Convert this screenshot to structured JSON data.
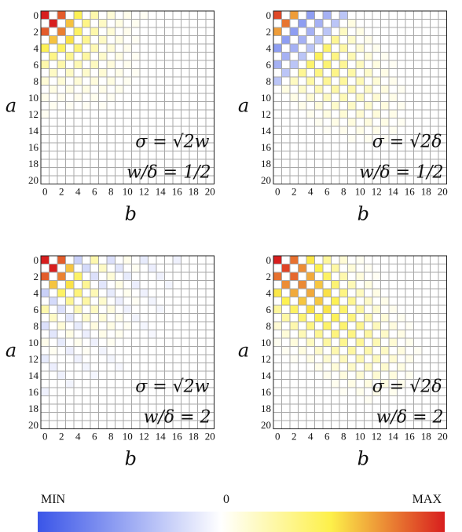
{
  "colors": {
    "min": "#3a55e8",
    "zero": "#ffffff",
    "mid": "#fdf04a",
    "max": "#d81e1e",
    "grid": "#a8a8a8"
  },
  "legend": {
    "min_label": "MIN",
    "zero_label": "0",
    "max_label": "MAX"
  },
  "chart_data": [
    {
      "type": "heatmap",
      "xlabel": "b",
      "ylabel": "a",
      "xticks": [
        "0",
        "2",
        "4",
        "6",
        "8",
        "10",
        "12",
        "14",
        "16",
        "18",
        "20"
      ],
      "yticks": [
        "0",
        "2",
        "4",
        "6",
        "8",
        "10",
        "12",
        "14",
        "16",
        "18",
        "20"
      ],
      "grid": true,
      "annotation_line1": "σ = √2w",
      "annotation_line2": "w/δ = 1/2",
      "checker_parity": "even",
      "value_pattern": {
        "diag_peak": 1.0,
        "diag_decay": 0.12,
        "edge_offset": 0.55,
        "radius": 17,
        "sign_flip_band": "none"
      }
    },
    {
      "type": "heatmap",
      "xlabel": "b",
      "ylabel": "a",
      "xticks": [
        "0",
        "2",
        "4",
        "6",
        "8",
        "10",
        "12",
        "14",
        "16",
        "18",
        "20"
      ],
      "yticks": [
        "0",
        "2",
        "4",
        "6",
        "8",
        "10",
        "12",
        "14",
        "16",
        "18",
        "20"
      ],
      "grid": true,
      "annotation_line1": "σ = √2δ",
      "annotation_line2": "w/δ = 1/2",
      "checker_parity": "even",
      "value_pattern": {
        "diag_peak": 0.9,
        "diag_decay": 0.03,
        "edge_offset": 0.0,
        "radius": 21,
        "sign_flip_band": "inner"
      }
    },
    {
      "type": "heatmap",
      "xlabel": "b",
      "ylabel": "a",
      "xticks": [
        "0",
        "2",
        "4",
        "6",
        "8",
        "10",
        "12",
        "14",
        "16",
        "18",
        "20"
      ],
      "yticks": [
        "0",
        "2",
        "4",
        "6",
        "8",
        "10",
        "12",
        "14",
        "16",
        "18",
        "20"
      ],
      "grid": true,
      "annotation_line1": "σ = √2w",
      "annotation_line2": "w/δ = 2",
      "checker_parity": "even",
      "value_pattern": {
        "diag_peak": 1.0,
        "diag_decay": 0.12,
        "edge_offset": 0.55,
        "radius": 16,
        "sign_flip_band": "mixed"
      }
    },
    {
      "type": "heatmap",
      "xlabel": "b",
      "ylabel": "a",
      "xticks": [
        "0",
        "2",
        "4",
        "6",
        "8",
        "10",
        "12",
        "14",
        "16",
        "18",
        "20"
      ],
      "yticks": [
        "0",
        "2",
        "4",
        "6",
        "8",
        "10",
        "12",
        "14",
        "16",
        "18",
        "20"
      ],
      "grid": true,
      "annotation_line1": "σ = √2δ",
      "annotation_line2": "w/δ = 2",
      "checker_parity": "even",
      "value_pattern": {
        "diag_peak": 1.0,
        "diag_decay": 0.015,
        "edge_offset": 0.0,
        "radius": 22,
        "sign_flip_band": "none"
      }
    }
  ]
}
